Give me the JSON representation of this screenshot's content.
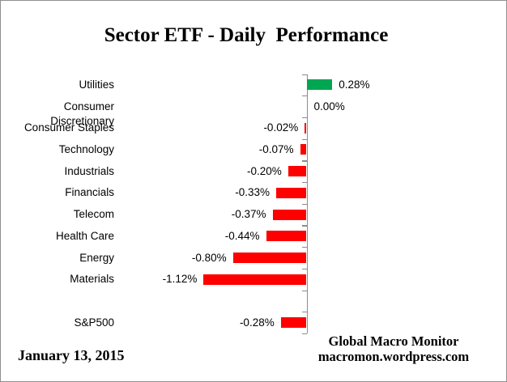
{
  "title": "Sector ETF - Daily  Performance",
  "date": "January 13, 2015",
  "credit": {
    "line1": "Global Macro Monitor",
    "line2": "macromon.wordpress.com"
  },
  "chart_data": {
    "type": "bar",
    "orientation": "horizontal",
    "title": "Sector ETF - Daily Performance",
    "xlabel": "",
    "ylabel": "",
    "xlim": [
      -1.2,
      0.4
    ],
    "grid": false,
    "legend": "none",
    "value_format": "0.00%",
    "categories": [
      "Utilities",
      "Consumer Discretionary",
      "Consumer Staples",
      "Technology",
      "Industrials",
      "Financials",
      "Telecom",
      "Health Care",
      "Energy",
      "Materials",
      "",
      "S&P500"
    ],
    "values": [
      0.28,
      0.0,
      -0.02,
      -0.07,
      -0.2,
      -0.33,
      -0.37,
      -0.44,
      -0.8,
      -1.12,
      null,
      -0.28
    ],
    "labels": [
      "0.28%",
      "0.00%",
      "-0.02%",
      "-0.07%",
      "-0.20%",
      "-0.33%",
      "-0.37%",
      "-0.44%",
      "-0.80%",
      "-1.12%",
      "",
      "-0.28%"
    ],
    "positive_color": "#00A651",
    "negative_color": "#FE0000",
    "axis_color": "#8c8c8c"
  }
}
